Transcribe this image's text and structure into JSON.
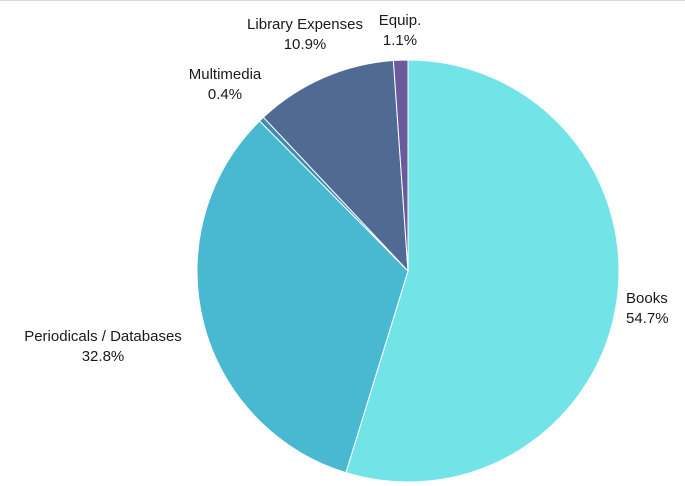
{
  "chart_data": {
    "type": "pie",
    "title": "",
    "slices": [
      {
        "label": "Books",
        "value": 54.7,
        "value_label": "54.7%",
        "color": "#72e4e7"
      },
      {
        "label": "Periodicals / Databases",
        "value": 32.8,
        "value_label": "32.8%",
        "color": "#48b9d1"
      },
      {
        "label": "Multimedia",
        "value": 0.4,
        "value_label": "0.4%",
        "color": "#3f8fb0"
      },
      {
        "label": "Library Expenses",
        "value": 10.9,
        "value_label": "10.9%",
        "color": "#516a94"
      },
      {
        "label": "Equip.",
        "value": 1.1,
        "value_label": "1.1%",
        "color": "#6a5a9c"
      }
    ],
    "start_angle": "12 o'clock",
    "direction": "clockwise",
    "legend": "none"
  }
}
